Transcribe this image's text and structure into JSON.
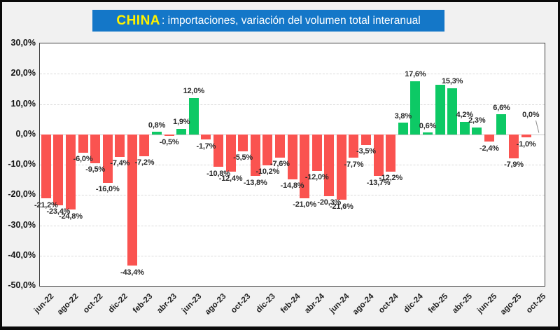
{
  "title": {
    "brand": "CHINA",
    "rest": ": importaciones, variación del volumen total interanual"
  },
  "colors": {
    "title_bg": "#1477C8",
    "title_brand": "#FFF200",
    "title_text": "#FFFFFF",
    "positive_bar": "#0DC965",
    "negative_bar": "#FA5350",
    "background": "#F1F1F1",
    "plot_background": "#FFFFFF"
  },
  "chart_data": {
    "type": "bar",
    "title": "CHINA: importaciones, variación del volumen total interanual",
    "xlabel": "",
    "ylabel": "",
    "ylim": [
      -50,
      30
    ],
    "grid": "horizontal-dashed",
    "legend": "none",
    "categories": [
      "jun-22",
      "jul-22",
      "ago-22",
      "sep-22",
      "oct-22",
      "nov-22",
      "dic-22",
      "ene-23",
      "feb-23",
      "mar-23",
      "abr-23",
      "may-23",
      "jun-23",
      "jul-23",
      "ago-23",
      "sep-23",
      "oct-23",
      "nov-23",
      "dic-23",
      "ene-24",
      "feb-24",
      "mar-24",
      "abr-24",
      "may-24",
      "jun-24",
      "jul-24",
      "ago-24",
      "sep-24",
      "oct-24",
      "nov-24",
      "dic-24",
      "ene-25",
      "feb-25",
      "mar-25",
      "abr-25",
      "may-25",
      "jun-25",
      "jul-25",
      "ago-25",
      "sep-25",
      "oct-25"
    ],
    "values": [
      -21.2,
      -23.4,
      -24.8,
      -6.0,
      -9.5,
      -16.0,
      -7.4,
      -43.4,
      -7.2,
      0.8,
      -0.5,
      1.9,
      12.0,
      -1.7,
      -10.8,
      -12.4,
      -5.5,
      -13.8,
      -10.2,
      -7.6,
      -14.8,
      -21.0,
      -12.0,
      -20.3,
      -21.6,
      -7.7,
      -3.5,
      -13.7,
      -12.2,
      3.8,
      17.6,
      0.6,
      16.4,
      15.3,
      4.2,
      2.3,
      -2.4,
      6.6,
      -7.9,
      -1.0,
      0.0
    ],
    "data_labels": [
      "-21,2%",
      "-23,4%",
      "-24,8%",
      "-6,0%",
      "-9,5%",
      "-16,0%",
      "-7,4%",
      "-43,4%",
      "-7,2%",
      "0,8%",
      "-0,5%",
      "1,9%",
      "12,0%",
      "-1,7%",
      "-10,8%",
      "-12,4%",
      "-5,5%",
      "-13,8%",
      "-10,2%",
      "-7,6%",
      "-14,8%",
      "-21,0%",
      "-12,0%",
      "-20,3%",
      "-21,6%",
      "-7,7%",
      "-3,5%",
      "-13,7%",
      "-12,2%",
      "3,8%",
      "17,6%",
      "0,6%",
      "",
      "15,3%",
      "4,2%",
      "2,3%",
      "-2,4%",
      "6,6%",
      "-7,9%",
      "-1,0%",
      "0,0%"
    ],
    "x_tick_interval": 2,
    "y_ticks": [
      "30,0%",
      "20,0%",
      "10,0%",
      "0,0%",
      "-10,0%",
      "-20,0%",
      "-30,0%",
      "-40,0%",
      "-50,0%"
    ]
  }
}
